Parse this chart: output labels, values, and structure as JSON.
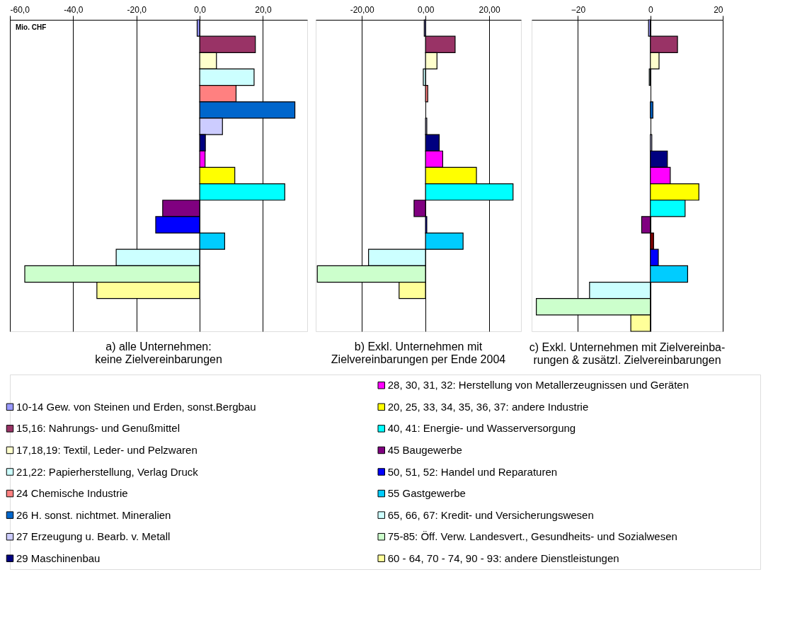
{
  "chart_data": [
    {
      "type": "bar",
      "orientation": "horizontal",
      "title": "a) alle Unternehmen:\nkeine Zielvereinbarungen",
      "annotations": [
        "Mio. CHF"
      ],
      "categories": [
        null
      ],
      "xlim": [
        -60,
        34
      ],
      "xticks": [
        {
          "value": -60,
          "label": "-60,0"
        },
        {
          "value": -40,
          "label": "-40,0"
        },
        {
          "value": -20,
          "label": "-20,0"
        },
        {
          "value": 0,
          "label": "0,0"
        },
        {
          "value": 20,
          "label": "20,0"
        }
      ],
      "grid": "x",
      "tick_labels": "x",
      "legend": "bottom",
      "series": [
        {
          "name": "10-14 Gew. von Steinen und Erden, sonst.Bergbau",
          "color": "#9999ff",
          "values": [
            -0.8
          ]
        },
        {
          "name": "15,16: Nahrungs- und Genußmittel",
          "color": "#993366",
          "values": [
            17.6
          ]
        },
        {
          "name": "17,18,19: Textil, Leder- und Pelzwaren",
          "color": "#ffffcc",
          "values": [
            5.3
          ]
        },
        {
          "name": "21,22: Papierherstellung, Verlag Druck",
          "color": "#ccffff",
          "values": [
            17.2
          ]
        },
        {
          "name": "24 Chemische Industrie",
          "color": "#ff8080",
          "values": [
            11.5
          ]
        },
        {
          "name": "26 H. sonst. nichtmet. Mineralien",
          "color": "#0066cc",
          "values": [
            30.1
          ]
        },
        {
          "name": "27 Erzeugung u. Bearb. v. Metall",
          "color": "#ccccff",
          "values": [
            7.2
          ]
        },
        {
          "name": "29 Maschinenbau",
          "color": "#000080",
          "values": [
            1.8
          ]
        },
        {
          "name": "28, 30, 31, 32: Herstellung von Metallerzeugnissen und Geräten",
          "color": "#ff00ff",
          "values": [
            1.7
          ]
        },
        {
          "name": "20, 25, 33, 34, 35, 36, 37: andere Industrie",
          "color": "#ffff00",
          "values": [
            11.1
          ]
        },
        {
          "name": "40, 41: Energie- und Wasserversorgung",
          "color": "#00ffff",
          "values": [
            26.9
          ]
        },
        {
          "name": "45 Baugewerbe",
          "color": "#800080",
          "values": [
            -11.7
          ]
        },
        {
          "name": "50, 51, 52: Handel und Reparaturen",
          "color": "#0000ff",
          "values": [
            -13.9
          ]
        },
        {
          "name": "55 Gastgewerbe",
          "color": "#00ccff",
          "values": [
            7.9
          ]
        },
        {
          "name": "65, 66, 67: Kredit- und Versicherungswesen",
          "color": "#ccffff",
          "values": [
            -26.4
          ]
        },
        {
          "name": "75-85: Öff. Verw. Landesvert., Gesundheits- und Sozialwesen",
          "color": "#ccffcc",
          "values": [
            -55.3
          ]
        },
        {
          "name": "60 - 64, 70 - 74, 90 - 93: andere Dienstleistungen",
          "color": "#ffff99",
          "values": [
            -32.5
          ]
        }
      ]
    },
    {
      "type": "bar",
      "orientation": "horizontal",
      "title": "b) Exkl. Unternehmen mit\nZielvereinbarungen per Ende 2004",
      "categories": [
        null
      ],
      "xlim": [
        -34.5,
        30
      ],
      "xticks": [
        {
          "value": -20,
          "label": "-20,00"
        },
        {
          "value": 0,
          "label": "0,00"
        },
        {
          "value": 20,
          "label": "20,00"
        }
      ],
      "grid": "x",
      "tick_labels": "x",
      "series": [
        {
          "color": "#9999ff",
          "values": [
            -0.4
          ]
        },
        {
          "color": "#993366",
          "values": [
            9.3
          ]
        },
        {
          "color": "#ffffcc",
          "values": [
            3.6
          ]
        },
        {
          "color": "#ccffff",
          "values": [
            -0.7
          ]
        },
        {
          "color": "#ff8080",
          "values": [
            0.7
          ]
        },
        {
          "color": "#0066cc",
          "values": [
            null
          ]
        },
        {
          "color": "#ccccff",
          "values": [
            0.4
          ]
        },
        {
          "color": "#000080",
          "values": [
            4.3
          ]
        },
        {
          "color": "#ff00ff",
          "values": [
            5.4
          ]
        },
        {
          "color": "#ffff00",
          "values": [
            16.0
          ]
        },
        {
          "color": "#00ffff",
          "values": [
            27.5
          ]
        },
        {
          "color": "#800080",
          "values": [
            -3.6
          ]
        },
        {
          "color": "#0000ff",
          "values": [
            0.4
          ]
        },
        {
          "color": "#00ccff",
          "values": [
            11.8
          ]
        },
        {
          "color": "#ccffff",
          "values": [
            -17.9
          ]
        },
        {
          "color": "#ccffcc",
          "values": [
            -34.0
          ]
        },
        {
          "color": "#ffff99",
          "values": [
            -8.3
          ]
        }
      ]
    },
    {
      "type": "bar",
      "orientation": "horizontal",
      "title": "c) Exkl. Unternehmen mit Zielvereinba-\nrungen & zusätzl. Zielvereinbarungen",
      "categories": [
        null
      ],
      "xlim": [
        -32.8,
        20
      ],
      "xticks": [
        -20,
        0,
        20
      ],
      "grid": "x",
      "tick_labels": "x",
      "series": [
        {
          "color": "#9999ff",
          "values": [
            -0.5
          ]
        },
        {
          "color": "#993366",
          "values": [
            7.5
          ]
        },
        {
          "color": "#ffffcc",
          "values": [
            2.4
          ]
        },
        {
          "color": "#ccffff",
          "values": [
            -0.3
          ]
        },
        {
          "values": [
            null
          ]
        },
        {
          "color": "#0066cc",
          "values": [
            0.7
          ]
        },
        {
          "values": [
            null
          ]
        },
        {
          "color": "#ccccff",
          "values": [
            0.4
          ]
        },
        {
          "color": "#000080",
          "values": [
            4.7
          ]
        },
        {
          "color": "#ff00ff",
          "values": [
            5.5
          ]
        },
        {
          "color": "#ffff00",
          "values": [
            13.4
          ]
        },
        {
          "color": "#00ffff",
          "values": [
            9.6
          ]
        },
        {
          "color": "#800080",
          "values": [
            -2.4
          ]
        },
        {
          "color": "#800000",
          "values": [
            0.9
          ]
        },
        {
          "color": "#0000ff",
          "values": [
            2.2
          ]
        },
        {
          "color": "#00ccff",
          "values": [
            10.3
          ]
        },
        {
          "color": "#ccffff",
          "values": [
            -16.8
          ]
        },
        {
          "color": "#ccffcc",
          "values": [
            -31.5
          ]
        },
        {
          "color": "#ffff99",
          "values": [
            -5.4
          ]
        }
      ]
    }
  ]
}
